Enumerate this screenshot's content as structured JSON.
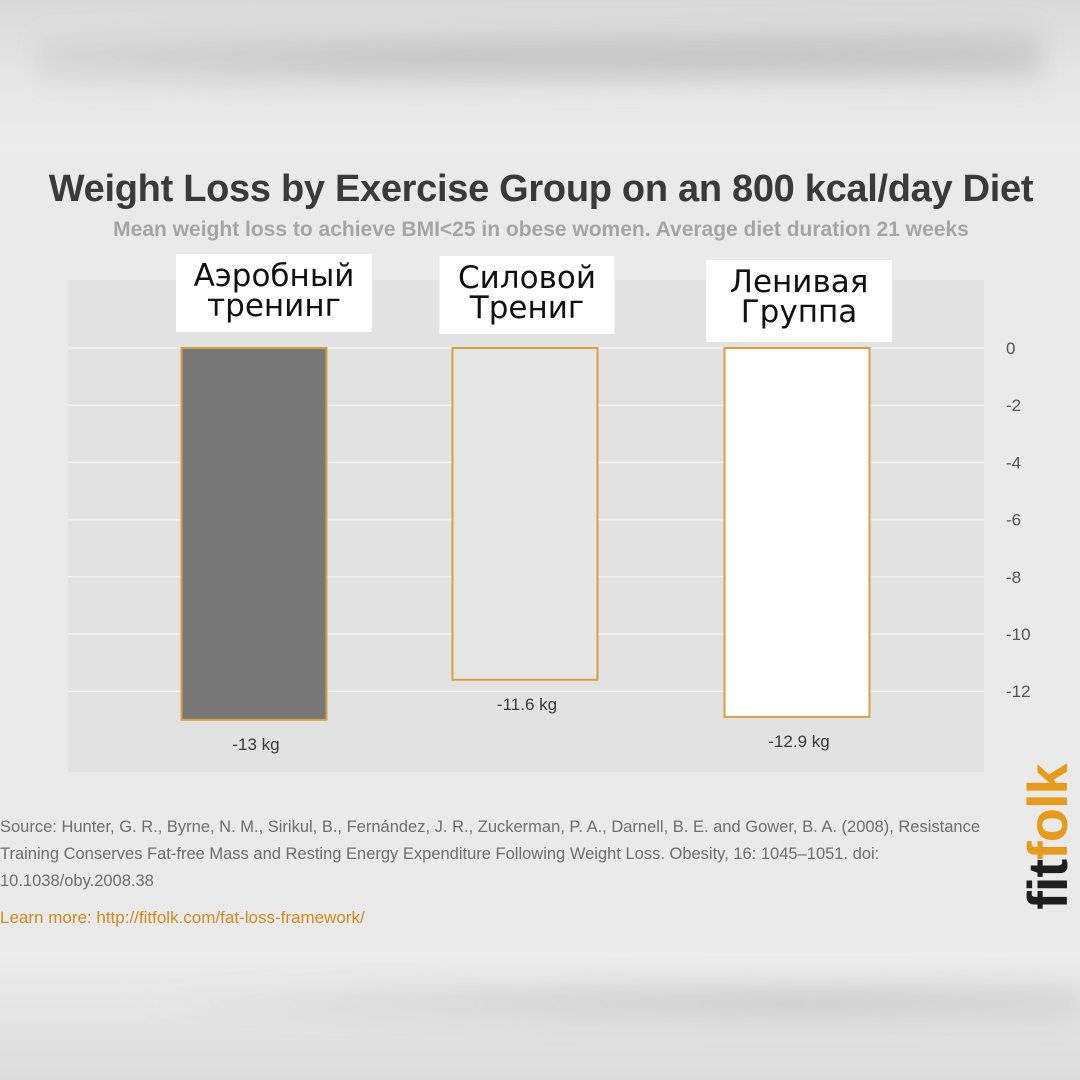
{
  "chart_data": {
    "type": "bar",
    "title": "Weight Loss by Exercise Group on an 800 kcal/day Diet",
    "subtitle": "Mean weight loss to achieve BMI<25 in obese women.  Average diet duration 21 weeks",
    "categories": [
      [
        "Аэробный",
        "тренинг"
      ],
      [
        "Силовой",
        "Трениг"
      ],
      [
        "Ленивая",
        "Группа"
      ]
    ],
    "values": [
      -13,
      -11.6,
      -12.9
    ],
    "value_labels": [
      "-13 kg",
      "-11.6 kg",
      "-12.9 kg"
    ],
    "bar_fills": [
      "#777777",
      "#e6e6e6",
      "#ffffff"
    ],
    "bar_outline": "#d9a040",
    "ylim": [
      0,
      -13
    ],
    "yticks": [
      0,
      -2,
      -4,
      -6,
      -8,
      -10,
      -12
    ],
    "y_axis_position": "right",
    "grid": true
  },
  "source": "Source: Hunter, G. R., Byrne, N. M., Sirikul, B., Fernández, J. R., Zuckerman, P. A., Darnell, B. E. and Gower, B. A. (2008), Resistance Training Conserves Fat-free Mass and Resting Energy Expenditure Following Weight Loss. Obesity, 16: 1045–1051. doi: 10.1038/oby.2008.38",
  "learn_more": "Learn more: http://fitfolk.com/fat-loss-framework/",
  "brand": {
    "part1": "fit",
    "part2": "folk"
  },
  "colors": {
    "accent": "#e89a1b",
    "link": "#d48a1a"
  }
}
